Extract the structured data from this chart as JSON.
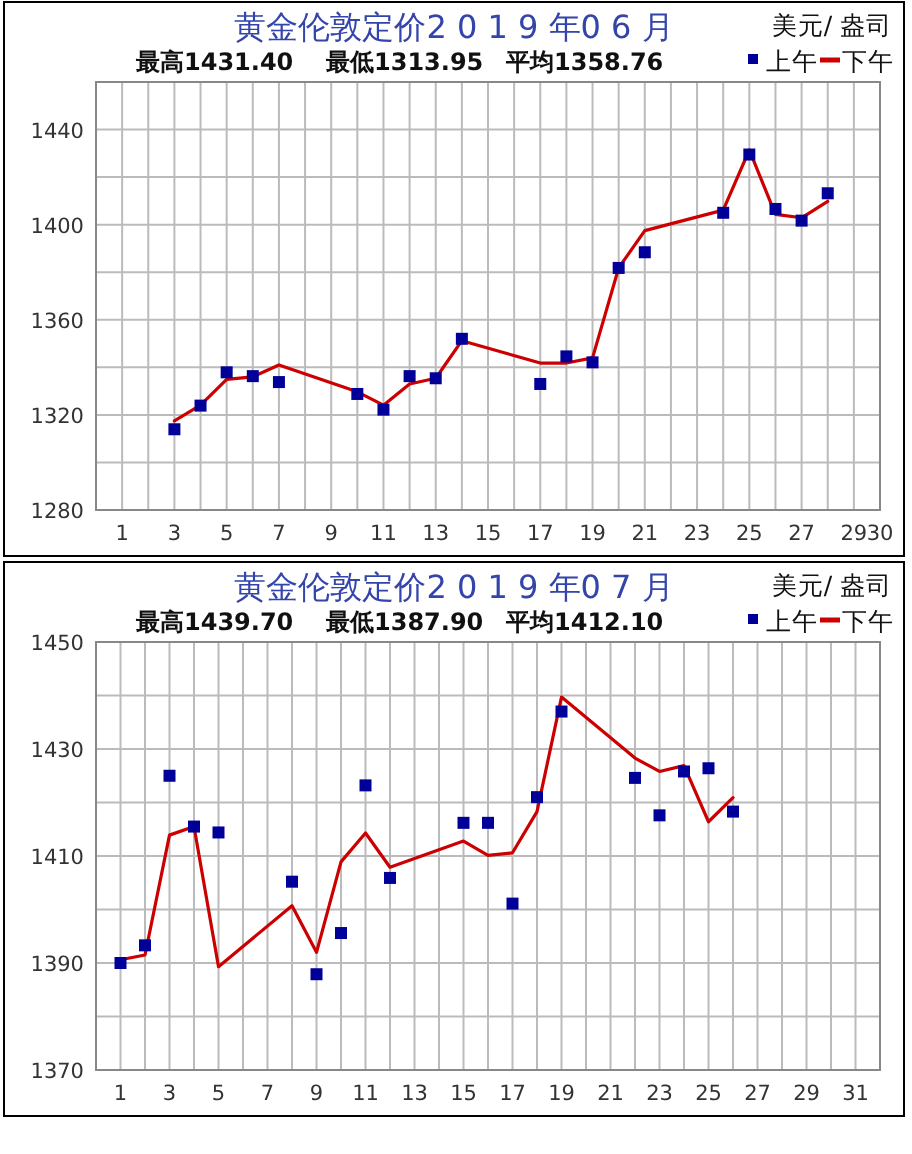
{
  "chart_data": [
    {
      "type": "line",
      "title": "黄金伦敦定价2 0 1 9 年0 6 月",
      "annotations": [
        "最高1431.40",
        "最低1313.95",
        "平均1358.76",
        "美元/ 盎司"
      ],
      "x": [
        3,
        4,
        5,
        6,
        7,
        10,
        11,
        12,
        13,
        14,
        17,
        18,
        19,
        20,
        21,
        24,
        25,
        26,
        27,
        28
      ],
      "series": [
        {
          "name": "上午",
          "type": "scatter",
          "marker": "square",
          "color": "#000099",
          "values": [
            1313.95,
            1323.9,
            1337.9,
            1336.3,
            1333.8,
            1328.8,
            1322.2,
            1336.3,
            1335.4,
            1352.0,
            1333.0,
            1344.6,
            1342.1,
            1381.8,
            1388.4,
            1405.0,
            1429.5,
            1406.6,
            1401.7,
            1413.2
          ]
        },
        {
          "name": "下午",
          "type": "line",
          "marker": "none",
          "color": "#cc0000",
          "values": [
            1317.5,
            1324.1,
            1334.9,
            1336.0,
            1341.0,
            1329.7,
            1324.1,
            1333.0,
            1335.4,
            1351.2,
            1341.8,
            1341.8,
            1344.0,
            1381.8,
            1397.5,
            1406.1,
            1431.4,
            1404.3,
            1402.9,
            1409.8
          ]
        }
      ],
      "xlim": [
        0,
        30
      ],
      "xticks": [
        1,
        {
          "value": 2,
          "label": null
        },
        3,
        {
          "value": 4,
          "label": null
        },
        5,
        {
          "value": 6,
          "label": null
        },
        7,
        {
          "value": 8,
          "label": null
        },
        9,
        {
          "value": 10,
          "label": null
        },
        11,
        {
          "value": 12,
          "label": null
        },
        13,
        {
          "value": 14,
          "label": null
        },
        15,
        {
          "value": 16,
          "label": null
        },
        17,
        {
          "value": 18,
          "label": null
        },
        19,
        {
          "value": 20,
          "label": null
        },
        21,
        {
          "value": 22,
          "label": null
        },
        23,
        {
          "value": 24,
          "label": null
        },
        25,
        {
          "value": 26,
          "label": null
        },
        27,
        {
          "value": 28,
          "label": null
        },
        29,
        30
      ],
      "ylim": [
        1280,
        1460
      ],
      "yticks": [
        1280,
        {
          "value": 1300,
          "label": null
        },
        1320,
        {
          "value": 1340,
          "label": null
        },
        1360,
        {
          "value": 1380,
          "label": null
        },
        1400,
        {
          "value": 1420,
          "label": null
        },
        1440,
        {
          "value": 1460,
          "label": null
        }
      ],
      "grid": true,
      "legend": "top right"
    },
    {
      "type": "line",
      "title": "黄金伦敦定价2 0 1 9 年0 7 月",
      "annotations": [
        "最高1439.70",
        "最低1387.90",
        "平均1412.10",
        "美元/ 盎司"
      ],
      "x": [
        1,
        2,
        3,
        4,
        5,
        8,
        9,
        10,
        11,
        12,
        15,
        16,
        17,
        18,
        19,
        22,
        23,
        24,
        25,
        26
      ],
      "series": [
        {
          "name": "上午",
          "type": "scatter",
          "marker": "square",
          "color": "#000099",
          "values": [
            1390.0,
            1393.3,
            1425.0,
            1415.5,
            1414.4,
            1405.2,
            1387.9,
            1395.6,
            1423.2,
            1405.9,
            1416.2,
            1416.2,
            1401.1,
            1421.0,
            1437.0,
            1424.6,
            1417.6,
            1425.8,
            1426.4,
            1418.3
          ]
        },
        {
          "name": "下午",
          "type": "line",
          "marker": "none",
          "color": "#cc0000",
          "values": [
            1390.6,
            1391.5,
            1413.9,
            1415.5,
            1389.3,
            1400.7,
            1392.0,
            1408.9,
            1414.3,
            1407.9,
            1412.8,
            1410.1,
            1410.6,
            1418.3,
            1439.7,
            1428.3,
            1425.8,
            1426.9,
            1416.4,
            1420.9
          ]
        }
      ],
      "xlim": [
        0,
        32
      ],
      "xticks": [
        1,
        {
          "value": 2,
          "label": null
        },
        3,
        {
          "value": 4,
          "label": null
        },
        5,
        {
          "value": 6,
          "label": null
        },
        7,
        {
          "value": 8,
          "label": null
        },
        9,
        {
          "value": 10,
          "label": null
        },
        11,
        {
          "value": 12,
          "label": null
        },
        13,
        {
          "value": 14,
          "label": null
        },
        15,
        {
          "value": 16,
          "label": null
        },
        17,
        {
          "value": 18,
          "label": null
        },
        19,
        {
          "value": 20,
          "label": null
        },
        21,
        {
          "value": 22,
          "label": null
        },
        23,
        {
          "value": 24,
          "label": null
        },
        25,
        {
          "value": 26,
          "label": null
        },
        27,
        {
          "value": 28,
          "label": null
        },
        29,
        {
          "value": 30,
          "label": null
        },
        31
      ],
      "ylim": [
        1370,
        1450
      ],
      "yticks": [
        1370,
        {
          "value": 1380,
          "label": null
        },
        1390,
        {
          "value": 1400,
          "label": null
        },
        1410,
        {
          "value": 1420,
          "label": null
        },
        1430,
        {
          "value": 1440,
          "label": null
        },
        1450
      ],
      "grid": true,
      "legend": "top right"
    }
  ]
}
